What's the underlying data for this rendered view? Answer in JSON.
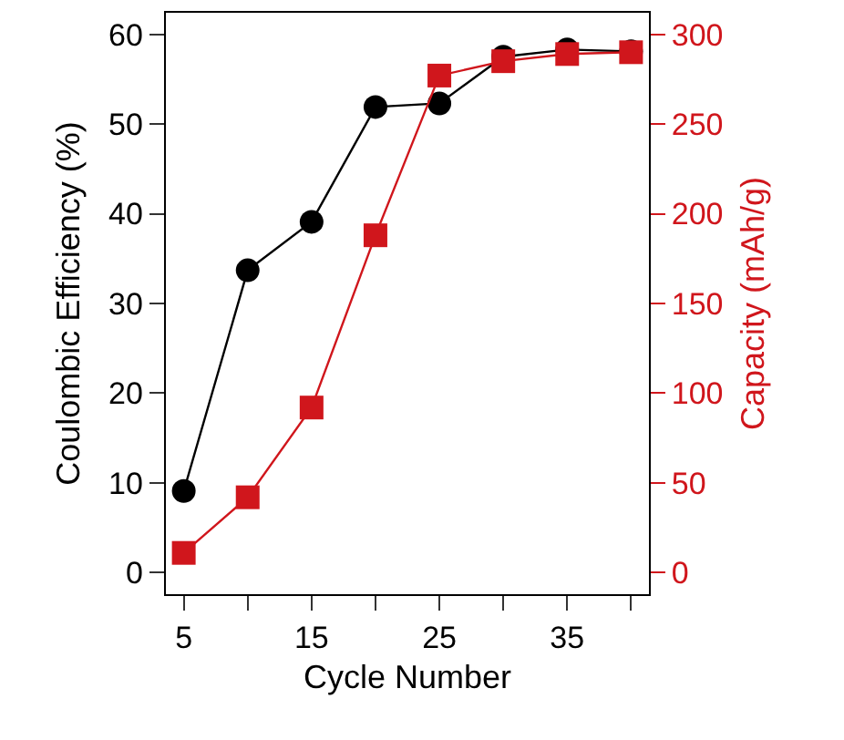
{
  "chart_data": {
    "type": "line",
    "xlabel": "Cycle Number",
    "ylabel": "Coulombic Efficiency (%)",
    "y2label": "Capacity (mAh/g)",
    "x": [
      5,
      10,
      15,
      20,
      25,
      30,
      35,
      40
    ],
    "series": [
      {
        "color": "#000000",
        "marker": "circle",
        "values": [
          9.1,
          33.7,
          39.1,
          51.9,
          52.3,
          57.5,
          58.3,
          58.1
        ]
      },
      {
        "color": "#d0161c",
        "marker": "square",
        "axis": "y2",
        "values": [
          11,
          42,
          92,
          188,
          277,
          285,
          289,
          290
        ]
      }
    ],
    "xlim": [
      3.6,
      41.4
    ],
    "xticks": [
      5,
      {
        "value": 10,
        "label": null
      },
      15,
      {
        "value": 20,
        "label": null
      },
      25,
      {
        "value": 30,
        "label": null
      },
      35,
      {
        "value": 40,
        "label": null
      }
    ],
    "ylim": [
      -2.4,
      62.4
    ],
    "yticks": [
      0,
      10,
      20,
      30,
      40,
      50,
      60
    ],
    "y2lim": [
      -12,
      312
    ],
    "y2ticks": [
      0,
      50,
      100,
      150,
      200,
      250,
      300
    ],
    "grid": false,
    "line_style": "solid"
  }
}
